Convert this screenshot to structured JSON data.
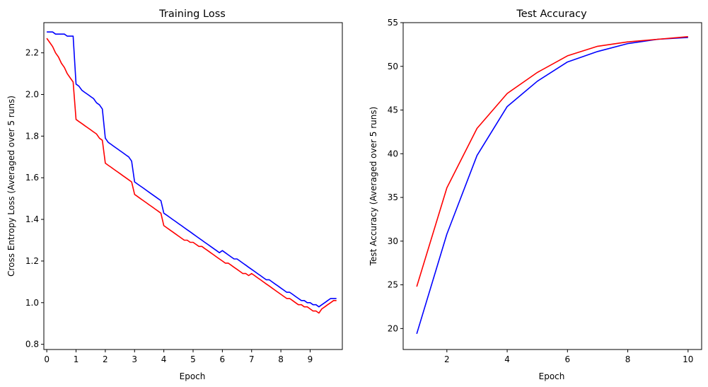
{
  "chart_data": [
    {
      "type": "line",
      "title": "Training Loss",
      "xlabel": "Epoch",
      "ylabel": "Cross Entropy Loss (Averaged over 5 runs)",
      "xlim": [
        -0.1,
        10.1
      ],
      "ylim": [
        0.775,
        2.345
      ],
      "grid": false,
      "legend": "none",
      "xticks": [
        0,
        1,
        2,
        3,
        4,
        5,
        6,
        7,
        8,
        9
      ],
      "xtick_labels": [
        "0",
        "1",
        "2",
        "3",
        "4",
        "5",
        "6",
        "7",
        "8",
        "9"
      ],
      "yticks": [
        0.8,
        1.0,
        1.2,
        1.4,
        1.6,
        1.8,
        2.0,
        2.2
      ],
      "ytick_labels": [
        "0.8",
        "1.0",
        "1.2",
        "1.4",
        "1.6",
        "1.8",
        "2.0",
        "2.2"
      ],
      "series": [
        {
          "name": "blue run",
          "color": "#0000ff",
          "x_start": 0.0,
          "x_step": 0.1,
          "values": [
            2.3,
            2.3,
            2.3,
            2.29,
            2.29,
            2.29,
            2.29,
            2.28,
            2.28,
            2.28,
            2.05,
            2.04,
            2.02,
            2.01,
            2.0,
            1.99,
            1.98,
            1.96,
            1.95,
            1.93,
            1.79,
            1.77,
            1.76,
            1.75,
            1.74,
            1.73,
            1.72,
            1.71,
            1.7,
            1.68,
            1.58,
            1.57,
            1.56,
            1.55,
            1.54,
            1.53,
            1.52,
            1.51,
            1.5,
            1.49,
            1.43,
            1.42,
            1.41,
            1.4,
            1.39,
            1.38,
            1.37,
            1.36,
            1.35,
            1.34,
            1.33,
            1.32,
            1.31,
            1.3,
            1.29,
            1.28,
            1.27,
            1.26,
            1.25,
            1.24,
            1.25,
            1.24,
            1.23,
            1.22,
            1.21,
            1.21,
            1.2,
            1.19,
            1.18,
            1.17,
            1.16,
            1.15,
            1.14,
            1.13,
            1.12,
            1.11,
            1.11,
            1.1,
            1.09,
            1.08,
            1.07,
            1.06,
            1.05,
            1.05,
            1.04,
            1.03,
            1.02,
            1.01,
            1.01,
            1.0,
            1.0,
            0.99,
            0.99,
            0.98,
            0.99,
            1.0,
            1.01,
            1.02,
            1.02,
            1.02
          ]
        },
        {
          "name": "red run",
          "color": "#ff0000",
          "x_start": 0.0,
          "x_step": 0.1,
          "values": [
            2.27,
            2.25,
            2.23,
            2.2,
            2.18,
            2.15,
            2.13,
            2.1,
            2.08,
            2.06,
            1.88,
            1.87,
            1.86,
            1.85,
            1.84,
            1.83,
            1.82,
            1.81,
            1.79,
            1.78,
            1.67,
            1.66,
            1.65,
            1.64,
            1.63,
            1.62,
            1.61,
            1.6,
            1.59,
            1.58,
            1.52,
            1.51,
            1.5,
            1.49,
            1.48,
            1.47,
            1.46,
            1.45,
            1.44,
            1.43,
            1.37,
            1.36,
            1.35,
            1.34,
            1.33,
            1.32,
            1.31,
            1.3,
            1.3,
            1.29,
            1.29,
            1.28,
            1.27,
            1.27,
            1.26,
            1.25,
            1.24,
            1.23,
            1.22,
            1.21,
            1.2,
            1.19,
            1.19,
            1.18,
            1.17,
            1.16,
            1.15,
            1.14,
            1.14,
            1.13,
            1.14,
            1.13,
            1.12,
            1.11,
            1.1,
            1.09,
            1.08,
            1.07,
            1.06,
            1.05,
            1.04,
            1.03,
            1.02,
            1.02,
            1.01,
            1.0,
            0.99,
            0.99,
            0.98,
            0.98,
            0.97,
            0.96,
            0.96,
            0.95,
            0.97,
            0.98,
            0.99,
            1.0,
            1.01,
            1.01
          ]
        }
      ]
    },
    {
      "type": "line",
      "title": "Test Accuracy",
      "xlabel": "Epoch",
      "ylabel": "Test Accuracy (Averaged over 5 runs)",
      "xlim": [
        0.55,
        10.45
      ],
      "ylim": [
        17.6,
        55.0
      ],
      "grid": false,
      "legend": "none",
      "xticks": [
        2,
        4,
        6,
        8,
        10
      ],
      "xtick_labels": [
        "2",
        "4",
        "6",
        "8",
        "10"
      ],
      "yticks": [
        20,
        25,
        30,
        35,
        40,
        45,
        50,
        55
      ],
      "ytick_labels": [
        "20",
        "25",
        "30",
        "35",
        "40",
        "45",
        "50",
        "55"
      ],
      "x": [
        1,
        2,
        3,
        4,
        5,
        6,
        7,
        8,
        9,
        10
      ],
      "series": [
        {
          "name": "blue run",
          "color": "#0000ff",
          "values": [
            19.4,
            30.8,
            39.8,
            45.4,
            48.3,
            50.5,
            51.7,
            52.6,
            53.1,
            53.3
          ]
        },
        {
          "name": "red run",
          "color": "#ff0000",
          "values": [
            24.8,
            36.1,
            42.9,
            46.9,
            49.3,
            51.2,
            52.3,
            52.8,
            53.1,
            53.4
          ]
        }
      ]
    }
  ]
}
